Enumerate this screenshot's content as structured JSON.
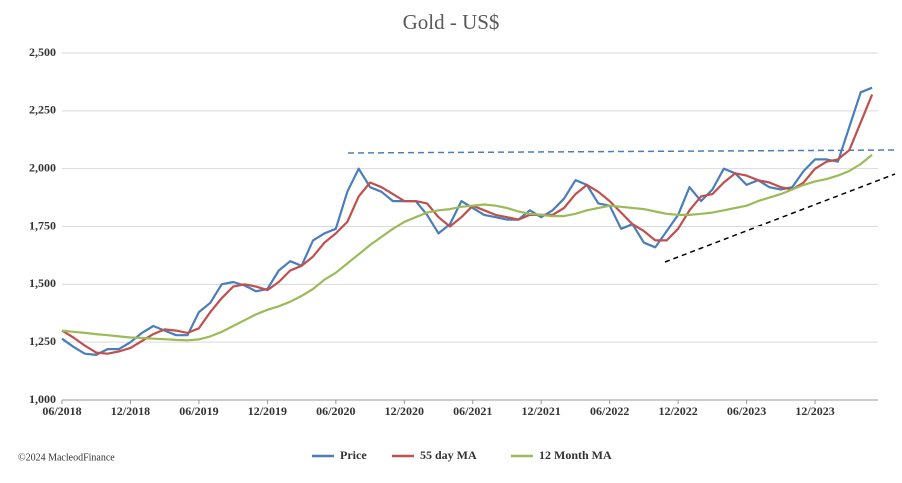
{
  "chart_data": {
    "type": "line",
    "title": "Gold - US$",
    "source": "©2024 MacleodFinance",
    "x": [
      "06/2018",
      "07/2018",
      "08/2018",
      "09/2018",
      "10/2018",
      "11/2018",
      "12/2018",
      "01/2019",
      "02/2019",
      "03/2019",
      "04/2019",
      "05/2019",
      "06/2019",
      "07/2019",
      "08/2019",
      "09/2019",
      "10/2019",
      "11/2019",
      "12/2019",
      "01/2020",
      "02/2020",
      "03/2020",
      "04/2020",
      "05/2020",
      "06/2020",
      "07/2020",
      "08/2020",
      "09/2020",
      "10/2020",
      "11/2020",
      "12/2020",
      "01/2021",
      "02/2021",
      "03/2021",
      "04/2021",
      "05/2021",
      "06/2021",
      "07/2021",
      "08/2021",
      "09/2021",
      "10/2021",
      "11/2021",
      "12/2021",
      "01/2022",
      "02/2022",
      "03/2022",
      "04/2022",
      "05/2022",
      "06/2022",
      "07/2022",
      "08/2022",
      "09/2022",
      "10/2022",
      "11/2022",
      "12/2022",
      "01/2023",
      "02/2023",
      "03/2023",
      "04/2023",
      "05/2023",
      "06/2023",
      "07/2023",
      "08/2023",
      "09/2023",
      "10/2023",
      "11/2023",
      "12/2023",
      "01/2024",
      "02/2024",
      "03/2024",
      "04/2024",
      "05/2024"
    ],
    "series": [
      {
        "name": "Price",
        "color": "#4a7ebb",
        "values": [
          1265,
          1230,
          1200,
          1195,
          1220,
          1220,
          1250,
          1290,
          1320,
          1300,
          1280,
          1280,
          1380,
          1420,
          1500,
          1510,
          1495,
          1470,
          1480,
          1560,
          1600,
          1580,
          1690,
          1720,
          1740,
          1900,
          2000,
          1920,
          1900,
          1860,
          1860,
          1860,
          1800,
          1720,
          1760,
          1860,
          1830,
          1800,
          1790,
          1780,
          1780,
          1820,
          1790,
          1820,
          1870,
          1950,
          1930,
          1850,
          1840,
          1740,
          1760,
          1680,
          1660,
          1730,
          1800,
          1920,
          1860,
          1910,
          2000,
          1980,
          1930,
          1950,
          1920,
          1910,
          1920,
          1990,
          2040,
          2040,
          2030,
          2180,
          2330,
          2350
        ]
      },
      {
        "name": "55 day MA",
        "color": "#c0504d",
        "values": [
          1300,
          1270,
          1235,
          1205,
          1200,
          1210,
          1225,
          1255,
          1285,
          1305,
          1300,
          1290,
          1310,
          1380,
          1440,
          1490,
          1500,
          1490,
          1475,
          1510,
          1560,
          1580,
          1620,
          1680,
          1720,
          1770,
          1880,
          1940,
          1920,
          1890,
          1860,
          1860,
          1850,
          1790,
          1750,
          1790,
          1840,
          1820,
          1800,
          1790,
          1780,
          1800,
          1800,
          1800,
          1830,
          1890,
          1930,
          1900,
          1860,
          1810,
          1760,
          1730,
          1690,
          1690,
          1740,
          1820,
          1880,
          1890,
          1940,
          1980,
          1970,
          1950,
          1940,
          1920,
          1910,
          1940,
          2000,
          2030,
          2040,
          2080,
          2200,
          2320
        ]
      },
      {
        "name": "12 Month MA",
        "color": "#9bbb59",
        "values": [
          1300,
          1295,
          1290,
          1285,
          1280,
          1275,
          1270,
          1268,
          1265,
          1263,
          1260,
          1258,
          1262,
          1275,
          1295,
          1320,
          1345,
          1370,
          1390,
          1405,
          1425,
          1450,
          1480,
          1520,
          1550,
          1590,
          1630,
          1670,
          1705,
          1740,
          1770,
          1790,
          1810,
          1820,
          1825,
          1835,
          1840,
          1845,
          1840,
          1830,
          1815,
          1805,
          1800,
          1795,
          1795,
          1805,
          1820,
          1830,
          1840,
          1835,
          1830,
          1825,
          1815,
          1805,
          1800,
          1800,
          1805,
          1810,
          1820,
          1830,
          1840,
          1860,
          1875,
          1890,
          1910,
          1930,
          1945,
          1955,
          1970,
          1990,
          2020,
          2060
        ]
      }
    ],
    "xticks": [
      "06/2018",
      "12/2018",
      "06/2019",
      "12/2019",
      "06/2020",
      "12/2020",
      "06/2021",
      "12/2021",
      "06/2022",
      "12/2022",
      "06/2023",
      "12/2023"
    ],
    "ylim": [
      1000,
      2500
    ],
    "yticks": [
      {
        "value": 1000,
        "label": "1,000"
      },
      {
        "value": 1250,
        "label": "1,250"
      },
      {
        "value": 1500,
        "label": "1,500"
      },
      {
        "value": 1750,
        "label": "1,750"
      },
      {
        "value": 2000,
        "label": "2,000"
      },
      {
        "value": 2250,
        "label": "2,250"
      },
      {
        "value": 2500,
        "label": "2,500"
      }
    ],
    "grid": true
  }
}
